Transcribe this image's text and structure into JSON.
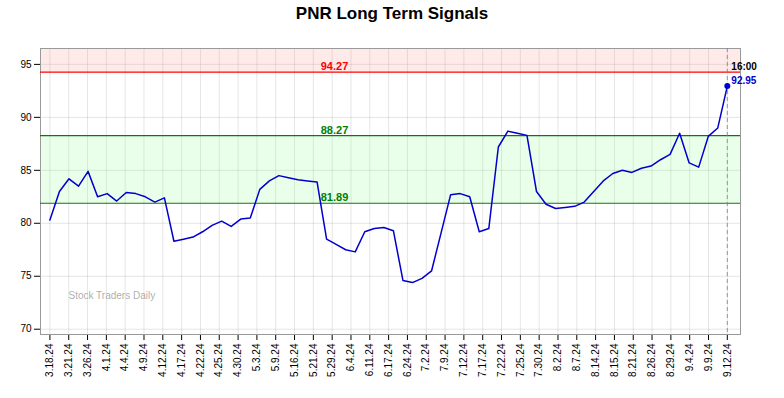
{
  "chart_data": {
    "type": "line",
    "title": "PNR Long Term Signals",
    "color": "#0000cc",
    "x": [
      0,
      0.507,
      1.0141,
      1.5211,
      2.0282,
      2.5352,
      3.0423,
      3.5493,
      4.0563,
      4.5634,
      5.0704,
      5.5775,
      6.0845,
      6.5915,
      7.0986,
      7.6056,
      8.1127,
      8.6197,
      9.1268,
      9.6338,
      10.1408,
      10.6479,
      11.1549,
      11.662,
      12.169,
      12.6761,
      13.1831,
      13.6901,
      14.1972,
      14.7042,
      15.2113,
      15.7183,
      16.2254,
      16.7324,
      17.2394,
      17.7465,
      18.2535,
      18.7606,
      19.2676,
      19.7746,
      20.2817,
      20.7887,
      21.2958,
      21.8028,
      22.3099,
      22.8169,
      23.3239,
      23.831,
      24.338,
      24.8451,
      25.3521,
      25.8592,
      26.3662,
      26.8732,
      27.3803,
      27.8873,
      28.3944,
      28.9014,
      29.4085,
      29.9155,
      30.4225,
      30.9296,
      31.4366,
      31.9437,
      32.4507,
      32.9577,
      33.4648,
      33.9718,
      34.4789,
      34.9859,
      35.493,
      36
    ],
    "values": [
      80.3,
      83.0,
      84.2,
      83.5,
      84.9,
      82.5,
      82.8,
      82.1,
      82.9,
      82.8,
      82.5,
      82.0,
      82.4,
      78.3,
      78.5,
      78.7,
      79.2,
      79.8,
      80.2,
      79.7,
      80.4,
      80.5,
      83.2,
      84.0,
      84.5,
      84.3,
      84.1,
      84.0,
      83.9,
      78.5,
      78.0,
      77.5,
      77.3,
      79.2,
      79.5,
      79.6,
      79.3,
      74.6,
      74.4,
      74.8,
      75.5,
      79.1,
      82.7,
      82.8,
      82.5,
      79.2,
      79.5,
      87.2,
      88.7,
      88.5,
      88.3,
      83.0,
      81.8,
      81.4,
      81.5,
      81.6,
      82.0,
      83.0,
      84.0,
      84.7,
      85.0,
      84.8,
      85.2,
      85.4,
      86.0,
      86.5,
      88.5,
      85.7,
      85.3,
      88.2,
      89.0,
      92.95
    ],
    "xlim": [
      -0.5,
      36.7
    ],
    "xticks": [
      {
        "value": 0,
        "label": "3.18.24"
      },
      {
        "value": 1,
        "label": "3.21.24"
      },
      {
        "value": 2,
        "label": "3.26.24"
      },
      {
        "value": 3,
        "label": "4.1.24"
      },
      {
        "value": 4,
        "label": "4.4.24"
      },
      {
        "value": 5,
        "label": "4.9.24"
      },
      {
        "value": 6,
        "label": "4.12.24"
      },
      {
        "value": 7,
        "label": "4.17.24"
      },
      {
        "value": 8,
        "label": "4.22.24"
      },
      {
        "value": 9,
        "label": "4.25.24"
      },
      {
        "value": 10,
        "label": "4.30.24"
      },
      {
        "value": 11,
        "label": "5.3.24"
      },
      {
        "value": 12,
        "label": "5.9.24"
      },
      {
        "value": 13,
        "label": "5.16.24"
      },
      {
        "value": 14,
        "label": "5.21.24"
      },
      {
        "value": 15,
        "label": "5.29.24"
      },
      {
        "value": 16,
        "label": "6.4.24"
      },
      {
        "value": 17,
        "label": "6.11.24"
      },
      {
        "value": 18,
        "label": "6.17.24"
      },
      {
        "value": 19,
        "label": "6.24.24"
      },
      {
        "value": 20,
        "label": "7.2.24"
      },
      {
        "value": 21,
        "label": "7.9.24"
      },
      {
        "value": 22,
        "label": "7.12.24"
      },
      {
        "value": 23,
        "label": "7.17.24"
      },
      {
        "value": 24,
        "label": "7.22.24"
      },
      {
        "value": 25,
        "label": "7.25.24"
      },
      {
        "value": 26,
        "label": "7.30.24"
      },
      {
        "value": 27,
        "label": "8.2.24"
      },
      {
        "value": 28,
        "label": "8.7.24"
      },
      {
        "value": 29,
        "label": "8.14.24"
      },
      {
        "value": 30,
        "label": "8.15.24"
      },
      {
        "value": 31,
        "label": "8.21.24"
      },
      {
        "value": 32,
        "label": "8.26.24"
      },
      {
        "value": 33,
        "label": "8.29.24"
      },
      {
        "value": 34,
        "label": "9.4.24"
      },
      {
        "value": 35,
        "label": "9.9.24"
      },
      {
        "value": 36,
        "label": "9.12.24"
      }
    ],
    "ylim": [
      69.5,
      96.5
    ],
    "yticks": [
      70,
      75,
      80,
      85,
      90,
      95
    ],
    "grid": true,
    "lines": [
      {
        "y": 94.27,
        "color": "red"
      },
      {
        "y": 88.27,
        "color": "green"
      },
      {
        "y": 81.89,
        "color": "green"
      }
    ],
    "bands": [
      {
        "from": 94.27,
        "to": 96.5,
        "color": "#ff8888"
      },
      {
        "from": 81.89,
        "to": 88.27,
        "color": "#88ff88"
      }
    ],
    "last_point": {
      "time": "16:00",
      "price": 92.95
    },
    "watermark": "Stock Traders Daily"
  }
}
